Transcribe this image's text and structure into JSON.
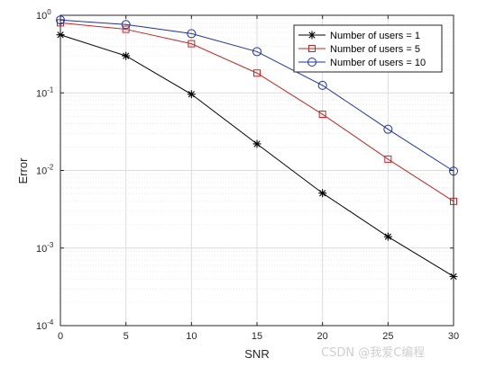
{
  "chart_data": {
    "type": "line",
    "title": "",
    "xlabel": "SNR",
    "ylabel": "Error",
    "x": [
      0,
      5,
      10,
      15,
      20,
      25,
      30
    ],
    "xlim": [
      0,
      30
    ],
    "ylim": [
      0.0001,
      1
    ],
    "yscale": "log",
    "grid": true,
    "legend_position": "top-right",
    "x_ticks": [
      "0",
      "5",
      "10",
      "15",
      "20",
      "25",
      "30"
    ],
    "y_ticks": [
      {
        "base": "10",
        "exp": "-4"
      },
      {
        "base": "10",
        "exp": "-3"
      },
      {
        "base": "10",
        "exp": "-2"
      },
      {
        "base": "10",
        "exp": "-1"
      },
      {
        "base": "10",
        "exp": "0"
      }
    ],
    "series": [
      {
        "name": "Number of users = 1",
        "values": [
          0.56,
          0.3,
          0.096,
          0.022,
          0.0051,
          0.0014,
          0.00043
        ],
        "color": "#000000",
        "marker": "asterisk"
      },
      {
        "name": "Number of users = 5",
        "values": [
          0.8,
          0.66,
          0.43,
          0.18,
          0.053,
          0.014,
          0.004
        ],
        "color": "#cc2222",
        "marker": "square"
      },
      {
        "name": "Number of users = 10",
        "values": [
          0.87,
          0.76,
          0.58,
          0.34,
          0.125,
          0.034,
          0.0098
        ],
        "color": "#1f2fb0",
        "marker": "circle"
      }
    ]
  },
  "watermark": "CSDN @我爱C编程"
}
